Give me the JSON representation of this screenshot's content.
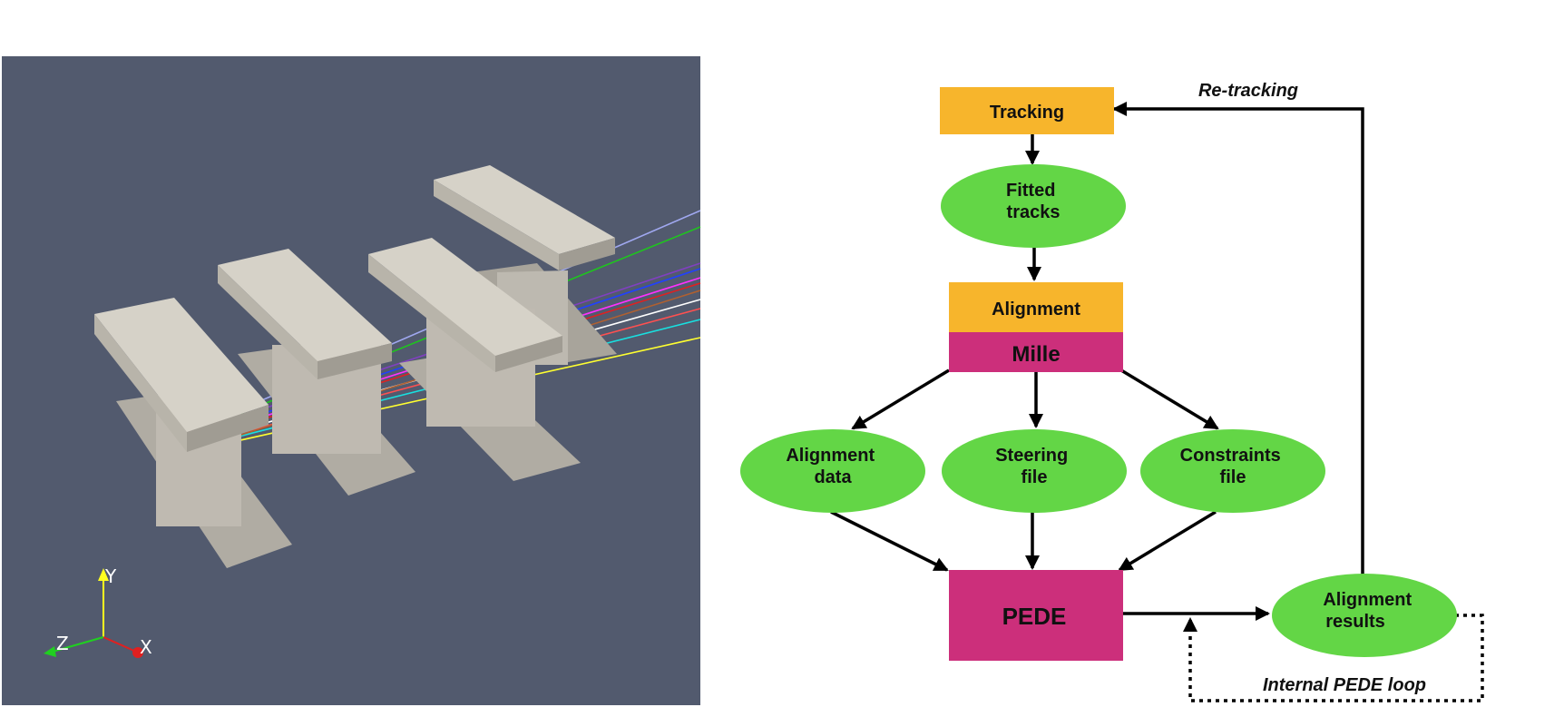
{
  "colors": {
    "viewport_bg": "#525a6e",
    "module": "#cdc9bf",
    "module_dark": "#a8a49b",
    "box_orange": "#f7b52c",
    "box_magenta": "#cc2f7b",
    "ellipse_green": "#63d646",
    "arrow": "#000000"
  },
  "scene": {
    "axes": {
      "x": "X",
      "y": "Y",
      "z": "Z"
    }
  },
  "diagram": {
    "tracking": "Tracking",
    "fitted_tracks": [
      "Fitted",
      "tracks"
    ],
    "alignment": "Alignment",
    "mille": "Mille",
    "alignment_data": [
      "Alignment",
      "data"
    ],
    "steering_file": [
      "Steering",
      "file"
    ],
    "constraints_file": [
      "Constraints",
      "file"
    ],
    "pede": "PEDE",
    "alignment_results": [
      "Alignment",
      "results"
    ],
    "retracking": "Re-tracking",
    "internal_loop": "Internal PEDE loop"
  }
}
